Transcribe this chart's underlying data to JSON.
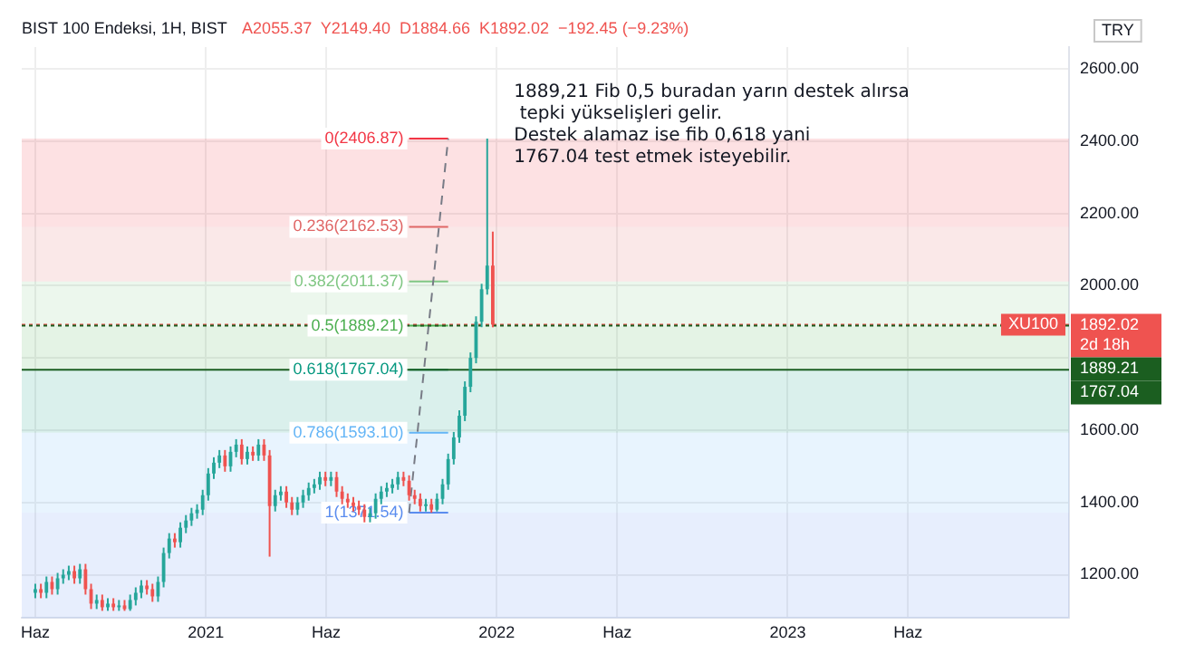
{
  "chart_data": {
    "type": "candlestick",
    "title": "BIST 100 Endeksi, 1H, BIST",
    "subtitle": "A2055.37  Y2149.40  D1884.66  K1892.02  −192.45 (−9.23%)",
    "ylabel": "TRY",
    "annotations": [
      "1889,21 Fib 0,5 buradan yarın destek alırsa\n tepki yükselişleri gelir.\nDestek alamaz ise fib 0,618 yani\n1767.04 test etmek isteyebilir.",
      "2d 18h",
      {
        "text": "XU100",
        "y": 1892.02
      }
    ],
    "xlim": [
      "2020-05-15",
      "2023-12-20"
    ],
    "xticks": [
      {
        "value": "2020-06-01",
        "label": "Haz"
      },
      {
        "value": "2021-01-01",
        "label": "2021"
      },
      {
        "value": "2021-06-01",
        "label": "Haz"
      },
      {
        "value": "2022-01-01",
        "label": "2022"
      },
      {
        "value": "2022-06-01",
        "label": "Haz"
      },
      {
        "value": "2023-01-01",
        "label": "2023"
      },
      {
        "value": "2023-06-01",
        "label": "Haz"
      }
    ],
    "ylim": [
      1080,
      2660
    ],
    "yticks": [
      {
        "value": 1200,
        "label": "1200.00"
      },
      {
        "value": 1400,
        "label": "1400.00"
      },
      {
        "value": 1600,
        "label": "1600.00"
      },
      {
        "value": 1800,
        "label": null
      },
      {
        "value": 2000,
        "label": "2000.00"
      },
      {
        "value": 2200,
        "label": "2200.00"
      },
      {
        "value": 2400,
        "label": "2400.00"
      },
      {
        "value": 2600,
        "label": "2600.00"
      }
    ],
    "grid": true,
    "legend": false,
    "series": [
      {
        "x": [
          "2020-06-01",
          "2020-06-08",
          "2020-06-15",
          "2020-06-22",
          "2020-06-29",
          "2020-07-06",
          "2020-07-13",
          "2020-07-20",
          "2020-07-27",
          "2020-08-03",
          "2020-08-10",
          "2020-08-17",
          "2020-08-24",
          "2020-08-31",
          "2020-09-07",
          "2020-09-14",
          "2020-09-21",
          "2020-09-28",
          "2020-10-05",
          "2020-10-12",
          "2020-10-19",
          "2020-10-26",
          "2020-11-02",
          "2020-11-09",
          "2020-11-16",
          "2020-11-23",
          "2020-11-30",
          "2020-12-07",
          "2020-12-14",
          "2020-12-21",
          "2020-12-28",
          "2021-01-04",
          "2021-01-11",
          "2021-01-18",
          "2021-01-25",
          "2021-02-01",
          "2021-02-08",
          "2021-02-15",
          "2021-02-22",
          "2021-03-01",
          "2021-03-08",
          "2021-03-15",
          "2021-03-22",
          "2021-03-29",
          "2021-04-05",
          "2021-04-12",
          "2021-04-19",
          "2021-04-26",
          "2021-05-03",
          "2021-05-10",
          "2021-05-17",
          "2021-05-24",
          "2021-05-31",
          "2021-06-07",
          "2021-06-14",
          "2021-06-21",
          "2021-06-28",
          "2021-07-05",
          "2021-07-12",
          "2021-07-19",
          "2021-07-26",
          "2021-08-02",
          "2021-08-09",
          "2021-08-16",
          "2021-08-23",
          "2021-08-30",
          "2021-09-06",
          "2021-09-13",
          "2021-09-20",
          "2021-09-27",
          "2021-10-04",
          "2021-10-11",
          "2021-10-18",
          "2021-10-25",
          "2021-11-01",
          "2021-11-08",
          "2021-11-15",
          "2021-11-22",
          "2021-11-29",
          "2021-12-06",
          "2021-12-13",
          "2021-12-20",
          "2021-12-27"
        ],
        "ohlc": [
          [
            1150,
            1175,
            1135,
            1160
          ],
          [
            1160,
            1175,
            1135,
            1150
          ],
          [
            1150,
            1195,
            1135,
            1180
          ],
          [
            1180,
            1195,
            1145,
            1160
          ],
          [
            1160,
            1205,
            1145,
            1190
          ],
          [
            1190,
            1215,
            1175,
            1200
          ],
          [
            1200,
            1225,
            1185,
            1210
          ],
          [
            1210,
            1225,
            1175,
            1190
          ],
          [
            1190,
            1230,
            1175,
            1215
          ],
          [
            1215,
            1230,
            1145,
            1160
          ],
          [
            1160,
            1175,
            1105,
            1120
          ],
          [
            1120,
            1145,
            1105,
            1130
          ],
          [
            1130,
            1145,
            1100,
            1110
          ],
          [
            1110,
            1135,
            1100,
            1120
          ],
          [
            1120,
            1135,
            1100,
            1110
          ],
          [
            1110,
            1130,
            1100,
            1115
          ],
          [
            1115,
            1130,
            1100,
            1105
          ],
          [
            1105,
            1145,
            1100,
            1130
          ],
          [
            1130,
            1165,
            1115,
            1150
          ],
          [
            1150,
            1185,
            1135,
            1170
          ],
          [
            1170,
            1185,
            1145,
            1160
          ],
          [
            1160,
            1175,
            1125,
            1140
          ],
          [
            1140,
            1195,
            1125,
            1180
          ],
          [
            1180,
            1275,
            1165,
            1260
          ],
          [
            1260,
            1315,
            1245,
            1300
          ],
          [
            1300,
            1315,
            1275,
            1290
          ],
          [
            1290,
            1345,
            1275,
            1330
          ],
          [
            1330,
            1365,
            1315,
            1350
          ],
          [
            1350,
            1385,
            1335,
            1370
          ],
          [
            1370,
            1395,
            1355,
            1380
          ],
          [
            1380,
            1435,
            1365,
            1420
          ],
          [
            1420,
            1495,
            1405,
            1480
          ],
          [
            1480,
            1525,
            1465,
            1510
          ],
          [
            1510,
            1545,
            1495,
            1530
          ],
          [
            1530,
            1545,
            1485,
            1500
          ],
          [
            1500,
            1555,
            1485,
            1540
          ],
          [
            1540,
            1575,
            1525,
            1560
          ],
          [
            1560,
            1575,
            1505,
            1520
          ],
          [
            1520,
            1555,
            1505,
            1540
          ],
          [
            1540,
            1555,
            1515,
            1530
          ],
          [
            1530,
            1575,
            1515,
            1560
          ],
          [
            1560,
            1575,
            1515,
            1530
          ],
          [
            1530,
            1545,
            1250,
            1390
          ],
          [
            1390,
            1435,
            1375,
            1420
          ],
          [
            1420,
            1445,
            1405,
            1430
          ],
          [
            1430,
            1445,
            1385,
            1400
          ],
          [
            1400,
            1415,
            1365,
            1380
          ],
          [
            1380,
            1415,
            1365,
            1400
          ],
          [
            1400,
            1435,
            1385,
            1420
          ],
          [
            1420,
            1455,
            1405,
            1440
          ],
          [
            1440,
            1465,
            1425,
            1450
          ],
          [
            1450,
            1485,
            1435,
            1470
          ],
          [
            1470,
            1485,
            1445,
            1460
          ],
          [
            1460,
            1485,
            1445,
            1470
          ],
          [
            1470,
            1485,
            1415,
            1430
          ],
          [
            1430,
            1445,
            1395,
            1410
          ],
          [
            1410,
            1425,
            1385,
            1400
          ],
          [
            1400,
            1415,
            1375,
            1390
          ],
          [
            1390,
            1405,
            1365,
            1380
          ],
          [
            1380,
            1395,
            1345,
            1360
          ],
          [
            1360,
            1385,
            1345,
            1370
          ],
          [
            1370,
            1425,
            1355,
            1410
          ],
          [
            1410,
            1445,
            1395,
            1430
          ],
          [
            1430,
            1455,
            1415,
            1440
          ],
          [
            1440,
            1465,
            1425,
            1450
          ],
          [
            1450,
            1485,
            1435,
            1470
          ],
          [
            1470,
            1485,
            1445,
            1460
          ],
          [
            1460,
            1475,
            1405,
            1420
          ],
          [
            1420,
            1435,
            1395,
            1410
          ],
          [
            1410,
            1425,
            1375,
            1390
          ],
          [
            1390,
            1410,
            1375,
            1395
          ],
          [
            1395,
            1410,
            1371.54,
            1380
          ],
          [
            1380,
            1425,
            1375,
            1410
          ],
          [
            1410,
            1465,
            1395,
            1450
          ],
          [
            1450,
            1535,
            1435,
            1520
          ],
          [
            1520,
            1595,
            1505,
            1580
          ],
          [
            1580,
            1655,
            1565,
            1640
          ],
          [
            1640,
            1735,
            1625,
            1720
          ],
          [
            1720,
            1815,
            1705,
            1800
          ],
          [
            1800,
            1915,
            1785,
            1900
          ],
          [
            1900,
            2005,
            1885,
            1990
          ],
          [
            1990,
            2406.87,
            1975,
            2055.37
          ],
          [
            2055.37,
            2149.4,
            1884.66,
            1892.02
          ]
        ],
        "colors": [
          "#26a69a",
          "#ef5350",
          "#26a69a",
          "#ef5350",
          "#26a69a",
          "#26a69a",
          "#26a69a",
          "#ef5350",
          "#26a69a",
          "#ef5350",
          "#ef5350",
          "#26a69a",
          "#ef5350",
          "#26a69a",
          "#ef5350",
          "#26a69a",
          "#ef5350",
          "#26a69a",
          "#26a69a",
          "#26a69a",
          "#ef5350",
          "#ef5350",
          "#26a69a",
          "#26a69a",
          "#26a69a",
          "#ef5350",
          "#26a69a",
          "#26a69a",
          "#26a69a",
          "#26a69a",
          "#26a69a",
          "#26a69a",
          "#26a69a",
          "#26a69a",
          "#ef5350",
          "#26a69a",
          "#26a69a",
          "#ef5350",
          "#26a69a",
          "#ef5350",
          "#26a69a",
          "#ef5350",
          "#ef5350",
          "#26a69a",
          "#26a69a",
          "#ef5350",
          "#ef5350",
          "#26a69a",
          "#26a69a",
          "#26a69a",
          "#26a69a",
          "#26a69a",
          "#ef5350",
          "#26a69a",
          "#ef5350",
          "#ef5350",
          "#ef5350",
          "#ef5350",
          "#ef5350",
          "#ef5350",
          "#26a69a",
          "#26a69a",
          "#26a69a",
          "#26a69a",
          "#26a69a",
          "#26a69a",
          "#ef5350",
          "#ef5350",
          "#ef5350",
          "#ef5350",
          "#26a69a",
          "#ef5350",
          "#26a69a",
          "#26a69a",
          "#26a69a",
          "#26a69a",
          "#26a69a",
          "#26a69a",
          "#26a69a",
          "#26a69a",
          "#26a69a",
          "#26a69a",
          "#ef5350"
        ]
      },
      {
        "type": "line",
        "x": [
          "2021-09-13",
          "2021-11-01"
        ],
        "values": [
          1371.54,
          2406.87
        ],
        "color": "#787b86",
        "line_style": "dashed",
        "marker": "none"
      }
    ],
    "bands": [
      {
        "axis": "y",
        "from": 2162.53,
        "to": 2406.87,
        "label": "0(2406.87)",
        "color": "#f23645"
      },
      {
        "axis": "y",
        "from": 2011.37,
        "to": 2162.53,
        "label": "0.236(2162.53)",
        "color": "#e06666"
      },
      {
        "axis": "y",
        "from": 1889.21,
        "to": 2011.37,
        "label": "0.382(2011.37)",
        "color": "#81c784"
      },
      {
        "axis": "y",
        "from": 1767.04,
        "to": 1889.21,
        "label": "0.5(1889.21)",
        "color": "#4caf50"
      },
      {
        "axis": "y",
        "from": 1593.1,
        "to": 1767.04,
        "label": "0.618(1767.04)",
        "color": "#089981"
      },
      {
        "axis": "y",
        "from": 1371.54,
        "to": 1593.1,
        "label": "0.786(1593.10)",
        "color": "#64b5f6"
      },
      {
        "axis": "y",
        "from": 1080,
        "to": 1371.54,
        "label": "1(1371.54)",
        "color": "#5b8def"
      }
    ],
    "ref_lines": [
      {
        "axis": "y",
        "value": 1892.02,
        "label": "1892.02",
        "color": "#ef5350",
        "line_style": "dotted"
      },
      {
        "axis": "y",
        "value": 1889.21,
        "label": "1889.21",
        "color": "#1b5e20",
        "line_style": "dotted"
      },
      {
        "axis": "y",
        "value": 1767.04,
        "label": "1767.04",
        "color": "#1b5e20",
        "line_style": "solid"
      }
    ]
  }
}
